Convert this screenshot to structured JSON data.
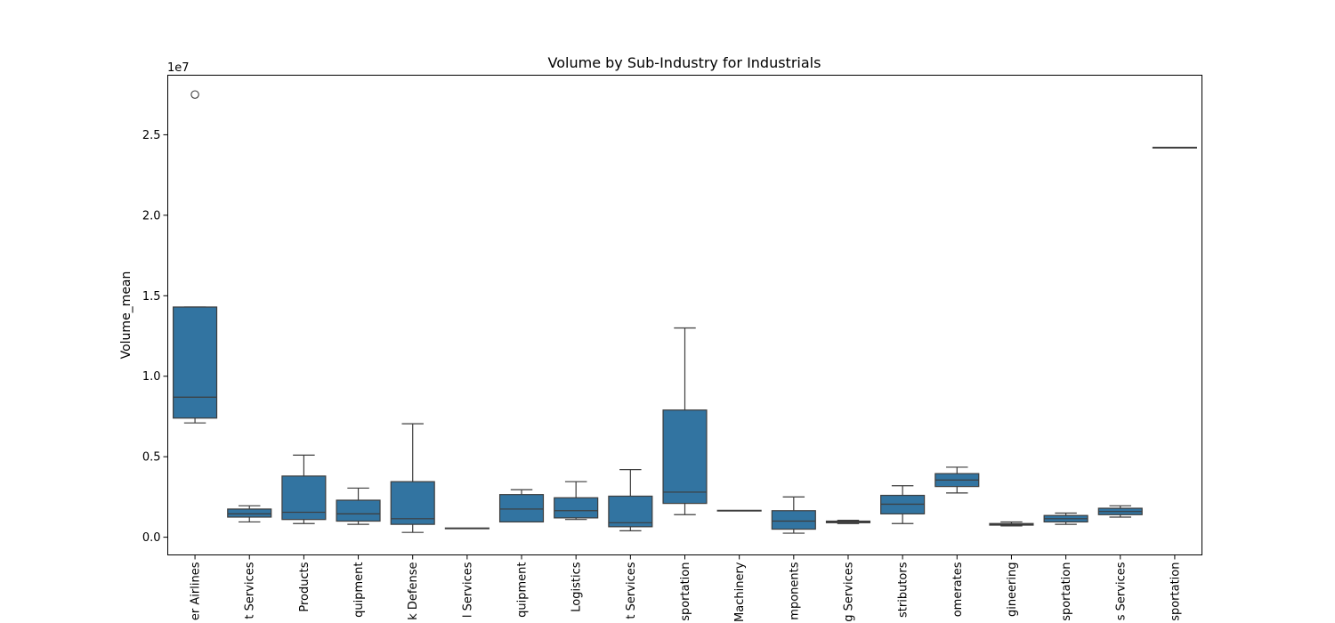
{
  "chart_data": {
    "type": "boxplot",
    "title": "Volume by Sub-Industry for Industrials",
    "ylabel": "Volume_mean",
    "xlabel": "",
    "y_offset_label": "1e7",
    "y_scale": 10000000,
    "ylim": [
      -1100000,
      28700000
    ],
    "yticks": [
      0,
      5000000,
      10000000,
      15000000,
      20000000,
      25000000
    ],
    "ytick_labels": [
      "0.0",
      "0.5",
      "1.0",
      "1.5",
      "2.0",
      "2.5"
    ],
    "grid": false,
    "box_color": "#3274a1",
    "line_color": "#3d3d3d",
    "categories": [
      "er Airlines",
      "t Services",
      "Products",
      "quipment",
      "k Defense",
      "l Services",
      "quipment",
      "Logistics",
      "t Services",
      "sportation",
      "Machinery",
      "mponents",
      "g Services",
      "stributors",
      "omerates",
      "gineering",
      "sportation",
      "s Services",
      "sportation"
    ],
    "boxes": [
      {
        "whislo": 7100000,
        "q1": 7400000,
        "med": 8700000,
        "q3": 14300000,
        "whishi": 14300000,
        "fliers": [
          27500000
        ]
      },
      {
        "whislo": 950000,
        "q1": 1250000,
        "med": 1450000,
        "q3": 1750000,
        "whishi": 1950000,
        "fliers": []
      },
      {
        "whislo": 850000,
        "q1": 1100000,
        "med": 1550000,
        "q3": 3800000,
        "whishi": 5100000,
        "fliers": []
      },
      {
        "whislo": 800000,
        "q1": 1000000,
        "med": 1450000,
        "q3": 2300000,
        "whishi": 3050000,
        "fliers": []
      },
      {
        "whislo": 300000,
        "q1": 800000,
        "med": 1150000,
        "q3": 3450000,
        "whishi": 7050000,
        "fliers": []
      },
      {
        "whislo": 550000,
        "q1": 550000,
        "med": 550000,
        "q3": 550000,
        "whishi": 550000,
        "fliers": []
      },
      {
        "whislo": 950000,
        "q1": 950000,
        "med": 1750000,
        "q3": 2650000,
        "whishi": 2950000,
        "fliers": []
      },
      {
        "whislo": 1100000,
        "q1": 1200000,
        "med": 1650000,
        "q3": 2450000,
        "whishi": 3450000,
        "fliers": []
      },
      {
        "whislo": 400000,
        "q1": 650000,
        "med": 900000,
        "q3": 2550000,
        "whishi": 4200000,
        "fliers": []
      },
      {
        "whislo": 1400000,
        "q1": 2100000,
        "med": 2800000,
        "q3": 7900000,
        "whishi": 13000000,
        "fliers": []
      },
      {
        "whislo": 1650000,
        "q1": 1650000,
        "med": 1650000,
        "q3": 1650000,
        "whishi": 1650000,
        "fliers": []
      },
      {
        "whislo": 250000,
        "q1": 500000,
        "med": 1000000,
        "q3": 1650000,
        "whishi": 2500000,
        "fliers": []
      },
      {
        "whislo": 850000,
        "q1": 900000,
        "med": 950000,
        "q3": 1000000,
        "whishi": 1050000,
        "fliers": []
      },
      {
        "whislo": 850000,
        "q1": 1450000,
        "med": 2050000,
        "q3": 2600000,
        "whishi": 3200000,
        "fliers": []
      },
      {
        "whislo": 2750000,
        "q1": 3150000,
        "med": 3550000,
        "q3": 3950000,
        "whishi": 4350000,
        "fliers": []
      },
      {
        "whislo": 700000,
        "q1": 750000,
        "med": 800000,
        "q3": 850000,
        "whishi": 950000,
        "fliers": []
      },
      {
        "whislo": 800000,
        "q1": 950000,
        "med": 1150000,
        "q3": 1350000,
        "whishi": 1500000,
        "fliers": []
      },
      {
        "whislo": 1250000,
        "q1": 1400000,
        "med": 1600000,
        "q3": 1800000,
        "whishi": 1950000,
        "fliers": []
      },
      {
        "whislo": 24200000,
        "q1": 24200000,
        "med": 24200000,
        "q3": 24200000,
        "whishi": 24200000,
        "fliers": []
      }
    ]
  }
}
